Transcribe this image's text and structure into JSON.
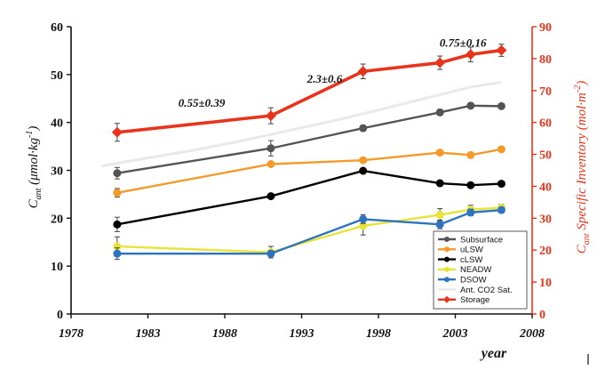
{
  "chart_data": {
    "type": "line",
    "x_label": "year",
    "y_label_left": "C",
    "y_label_left_sub": "ant",
    "y_label_left_units": " (μmol·kg",
    "y_label_left_exp": "-1",
    "y_label_left_close": ")",
    "y_label_right": "C",
    "y_label_right_sub": "ant",
    "y_label_right_units": " Specific Inventory (mol·m",
    "y_label_right_exp": "-2",
    "y_label_right_close": ")",
    "x_range": [
      1978,
      2008
    ],
    "x_ticks": [
      "1978",
      "1983",
      "1988",
      "1993",
      "1998",
      "2003",
      "2008"
    ],
    "y_left_range": [
      0,
      60
    ],
    "y_left_ticks": [
      "0",
      "10",
      "20",
      "30",
      "40",
      "50",
      "60"
    ],
    "y_right_range": [
      0,
      90
    ],
    "y_right_ticks": [
      "0",
      "10",
      "20",
      "30",
      "40",
      "50",
      "60",
      "70",
      "80",
      "90"
    ],
    "annotations": [
      {
        "text": "0.55±0.39",
        "x": 1986.5,
        "y": 43.3
      },
      {
        "text": "2.3±0.6",
        "x": 1994.5,
        "y": 48.3
      },
      {
        "text": "0.75±0.16",
        "x": 2003.5,
        "y": 55.8
      }
    ],
    "legend_position": "bottom-right",
    "series": [
      {
        "name": "Subsurface",
        "color": "#545454",
        "axis": "left",
        "marker": "circle",
        "x": [
          1981,
          1991,
          1997,
          2002,
          2004,
          2006
        ],
        "y": [
          29.4,
          34.6,
          38.8,
          42.1,
          43.5,
          43.4
        ],
        "err": [
          1.2,
          1.6,
          0.6,
          0.6,
          0.5,
          0.5
        ]
      },
      {
        "name": "uLSW",
        "color": "#f39a2a",
        "axis": "left",
        "marker": "circle",
        "x": [
          1981,
          1991,
          1997,
          2002,
          2004,
          2006
        ],
        "y": [
          25.3,
          31.3,
          32.1,
          33.7,
          33.2,
          34.4
        ],
        "err": [
          0.9,
          0,
          0,
          0,
          0,
          0
        ]
      },
      {
        "name": "cLSW",
        "color": "#000000",
        "axis": "left",
        "marker": "circle",
        "x": [
          1981,
          1991,
          1997,
          2002,
          2004,
          2006
        ],
        "y": [
          18.7,
          24.6,
          29.9,
          27.3,
          26.9,
          27.2
        ],
        "err": [
          1.5,
          0,
          0,
          0,
          0,
          0
        ]
      },
      {
        "name": "NEADW",
        "color": "#e8e437",
        "axis": "left",
        "marker": "circle",
        "x": [
          1981,
          1991,
          1997,
          2002,
          2004,
          2006
        ],
        "y": [
          14.1,
          12.9,
          18.4,
          20.7,
          21.8,
          22.2
        ],
        "err": [
          2.0,
          1.2,
          1.9,
          1.3,
          0.9,
          0.7
        ]
      },
      {
        "name": "DSOW",
        "color": "#2d74c0",
        "axis": "left",
        "marker": "circle",
        "x": [
          1981,
          1991,
          1997,
          2002,
          2004,
          2006
        ],
        "y": [
          12.6,
          12.6,
          19.8,
          18.7,
          21.2,
          21.7
        ],
        "err": [
          1.2,
          0.6,
          0.9,
          0.9,
          0.7,
          0.6
        ]
      },
      {
        "name": "Ant. CO2 Sat.",
        "color": "#e9e9e9",
        "axis": "left",
        "marker": "none",
        "x": [
          1980,
          1983,
          1986,
          1989,
          1992,
          1995,
          1998,
          2001,
          2004,
          2006
        ],
        "y": [
          30.9,
          32.6,
          34.2,
          36.1,
          38.2,
          40.3,
          42.6,
          45.0,
          47.4,
          48.4
        ],
        "err": []
      },
      {
        "name": "Storage",
        "color": "#e8341c",
        "axis": "right",
        "marker": "diamond",
        "x": [
          1981,
          1991,
          1997,
          2002,
          2004,
          2006
        ],
        "y": [
          56.9,
          62.1,
          76.0,
          78.7,
          81.3,
          82.6
        ],
        "err": [
          2.8,
          2.5,
          2.3,
          2.1,
          2.3,
          1.9
        ]
      }
    ]
  }
}
